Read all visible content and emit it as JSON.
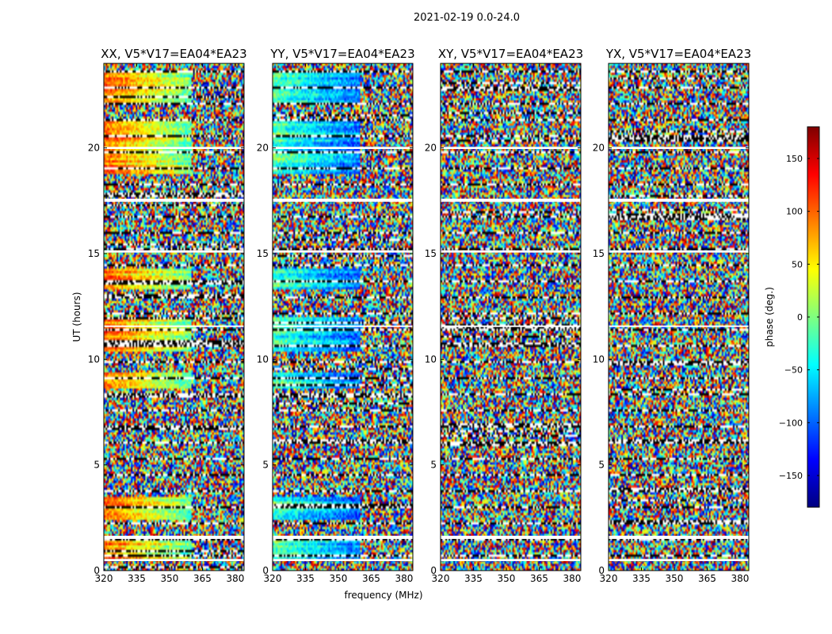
{
  "figure_title": "2021-02-19 0.0-24.0",
  "chart_data": {
    "type": "heatmap",
    "suptitle": "2021-02-19 0.0-24.0",
    "xlabel": "frequency (MHz)",
    "ylabel": "UT (hours)",
    "xlim": [
      320,
      384
    ],
    "ylim": [
      0,
      24
    ],
    "x_ticks": [
      320,
      335,
      350,
      365,
      380
    ],
    "y_ticks": [
      0,
      5,
      10,
      15,
      20
    ],
    "panels": [
      {
        "name": "xx",
        "title": "XX, V5*V17=EA04*EA23",
        "coherent": true,
        "tint": 1
      },
      {
        "name": "yy",
        "title": "YY, V5*V17=EA04*EA23",
        "coherent": true,
        "tint": -1
      },
      {
        "name": "xy",
        "title": "XY, V5*V17=EA04*EA23",
        "coherent": false,
        "tint": 0
      },
      {
        "name": "yx",
        "title": "YX, V5*V17=EA04*EA23",
        "coherent": false,
        "tint": 0
      }
    ],
    "flagged_bands_hours": [
      [
        0.45,
        0.55
      ],
      [
        1.5,
        1.65
      ],
      [
        11.55,
        11.6
      ],
      [
        15.05,
        15.15
      ],
      [
        17.45,
        17.6
      ],
      [
        19.95,
        20.05
      ]
    ],
    "colorbar": {
      "label": "phase (deg.)",
      "range": [
        -180,
        180
      ],
      "ticks": [
        -150,
        -100,
        -50,
        0,
        50,
        100,
        150
      ],
      "tick_labels": [
        "−150",
        "−100",
        "−50",
        "0",
        "50",
        "100",
        "150"
      ],
      "colormap": "jet",
      "colors": [
        "#00007f",
        "#0000ff",
        "#007fff",
        "#00ffff",
        "#7fff7f",
        "#ffff00",
        "#ff7f00",
        "#ff0000",
        "#7f0000"
      ]
    }
  }
}
